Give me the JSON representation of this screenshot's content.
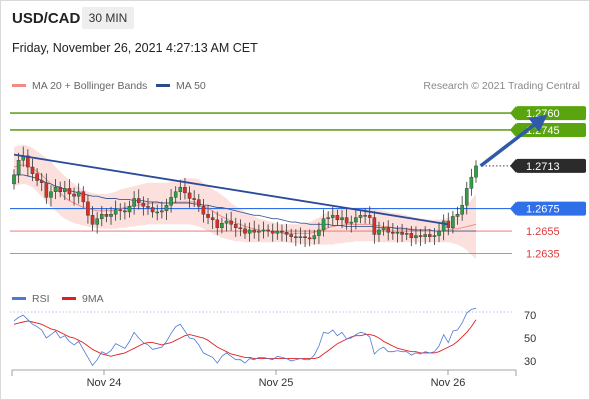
{
  "header": {
    "symbol": "USD/CAD",
    "timeframe": "30 MIN",
    "datetime": "Friday, November 26, 2021 4:27:13 AM CET"
  },
  "legend": {
    "price": [
      {
        "label": "MA 20 + Bollinger Bands",
        "color": "#f28b82"
      },
      {
        "label": "MA 50",
        "color": "#2b4a8b"
      }
    ],
    "credit": "Research © 2021 Trading Central",
    "rsi": [
      {
        "label": "RSI",
        "color": "#4f79d6"
      },
      {
        "label": "9MA",
        "color": "#e02020"
      }
    ]
  },
  "chart_data": [
    {
      "type": "candlestick",
      "symbol": "USD/CAD",
      "ylim": [
        1.2607,
        1.2777
      ],
      "x_labels": [
        "Nov 24",
        "Nov 25",
        "Nov 26"
      ],
      "series_close_estimate": [
        1.2705,
        1.2718,
        1.2722,
        1.2712,
        1.2706,
        1.27,
        1.2698,
        1.2685,
        1.269,
        1.2694,
        1.269,
        1.2693,
        1.2688,
        1.2686,
        1.269,
        1.2681,
        1.2669,
        1.2661,
        1.2666,
        1.267,
        1.2668,
        1.267,
        1.2674,
        1.2673,
        1.2672,
        1.2677,
        1.2684,
        1.268,
        1.2677,
        1.2676,
        1.2672,
        1.2672,
        1.2673,
        1.2678,
        1.2685,
        1.269,
        1.2694,
        1.2689,
        1.2684,
        1.2683,
        1.2677,
        1.267,
        1.2667,
        1.2665,
        1.2658,
        1.2662,
        1.2664,
        1.2661,
        1.2658,
        1.2657,
        1.2653,
        1.2656,
        1.2654,
        1.2655,
        1.2656,
        1.2655,
        1.2653,
        1.2655,
        1.2654,
        1.2652,
        1.265,
        1.2649,
        1.265,
        1.2649,
        1.2648,
        1.2651,
        1.2656,
        1.2666,
        1.2667,
        1.2669,
        1.2665,
        1.2667,
        1.2662,
        1.2663,
        1.2667,
        1.2669,
        1.2669,
        1.2667,
        1.2652,
        1.2656,
        1.2658,
        1.2654,
        1.2653,
        1.2654,
        1.2652,
        1.2653,
        1.2649,
        1.2651,
        1.265,
        1.2652,
        1.265,
        1.2651,
        1.2655,
        1.2664,
        1.2658,
        1.2668,
        1.267,
        1.2678,
        1.2693,
        1.2703,
        1.2713
      ],
      "bollinger_upper_estimate": [
        1.273,
        1.2731,
        1.2732,
        1.2731,
        1.2729,
        1.2726,
        1.2723,
        1.272,
        1.2717,
        1.2712,
        1.2708,
        1.2704,
        1.27,
        1.2697,
        1.2694,
        1.2692,
        1.269,
        1.2689,
        1.2688,
        1.2688,
        1.2688,
        1.2689,
        1.269,
        1.2692,
        1.2693,
        1.2694,
        1.2695,
        1.2696,
        1.2697,
        1.2698,
        1.2698,
        1.2698,
        1.2698,
        1.2698,
        1.2699,
        1.27,
        1.2701,
        1.2702,
        1.2702,
        1.2702,
        1.2701,
        1.2698,
        1.2695,
        1.2692,
        1.269,
        1.2687,
        1.2684,
        1.268,
        1.2677,
        1.2675,
        1.2672,
        1.267,
        1.2668,
        1.2666,
        1.2665,
        1.2664,
        1.2663,
        1.2662,
        1.2661,
        1.2661,
        1.2661,
        1.2661,
        1.2661,
        1.2662,
        1.2663,
        1.2665,
        1.2667,
        1.267,
        1.2672,
        1.2674,
        1.2675,
        1.2676,
        1.2676,
        1.2676,
        1.2676,
        1.2676,
        1.2676,
        1.2676,
        1.2675,
        1.2674,
        1.2673,
        1.2672,
        1.2671,
        1.2671,
        1.267,
        1.2669,
        1.2668,
        1.2667,
        1.2666,
        1.2666,
        1.2665,
        1.2665,
        1.2665,
        1.2666,
        1.2667,
        1.2669,
        1.2671,
        1.2674,
        1.2678,
        1.2683,
        1.2688
      ],
      "bollinger_lower_estimate": [
        1.2695,
        1.2696,
        1.2697,
        1.2696,
        1.2694,
        1.269,
        1.2686,
        1.2681,
        1.2677,
        1.2673,
        1.2669,
        1.2666,
        1.2664,
        1.2662,
        1.2661,
        1.266,
        1.2659,
        1.2658,
        1.2658,
        1.2657,
        1.2657,
        1.2657,
        1.2657,
        1.2658,
        1.2658,
        1.2659,
        1.2659,
        1.266,
        1.266,
        1.2661,
        1.2661,
        1.2661,
        1.2661,
        1.2661,
        1.2661,
        1.2661,
        1.2661,
        1.2661,
        1.2661,
        1.266,
        1.2659,
        1.2657,
        1.2655,
        1.2653,
        1.2651,
        1.2649,
        1.2648,
        1.2647,
        1.2646,
        1.2646,
        1.2645,
        1.2645,
        1.2645,
        1.2645,
        1.2645,
        1.2645,
        1.2645,
        1.2645,
        1.2645,
        1.2645,
        1.2644,
        1.2644,
        1.2644,
        1.2643,
        1.2643,
        1.2643,
        1.2643,
        1.2643,
        1.2643,
        1.2643,
        1.2644,
        1.2644,
        1.2645,
        1.2645,
        1.2646,
        1.2646,
        1.2646,
        1.2646,
        1.2646,
        1.2645,
        1.2645,
        1.2645,
        1.2645,
        1.2645,
        1.2645,
        1.2645,
        1.2645,
        1.2645,
        1.2645,
        1.2645,
        1.2645,
        1.2645,
        1.2645,
        1.2645,
        1.2645,
        1.2644,
        1.2643,
        1.2641,
        1.2638,
        1.2634,
        1.263
      ],
      "ma20_estimate": [
        1.2712,
        1.2713,
        1.2714,
        1.2713,
        1.2711,
        1.2708,
        1.2705,
        1.2701,
        1.2697,
        1.2693,
        1.2689,
        1.2685,
        1.2682,
        1.268,
        1.2678,
        1.2676,
        1.2675,
        1.2674,
        1.2673,
        1.2673,
        1.2673,
        1.2673,
        1.2674,
        1.2675,
        1.2676,
        1.2677,
        1.2678,
        1.2678,
        1.2679,
        1.2679,
        1.268,
        1.268,
        1.268,
        1.268,
        1.268,
        1.2681,
        1.2681,
        1.2681,
        1.2681,
        1.2681,
        1.268,
        1.2678,
        1.2675,
        1.2673,
        1.267,
        1.2668,
        1.2666,
        1.2664,
        1.2662,
        1.2661,
        1.2659,
        1.2658,
        1.2657,
        1.2656,
        1.2655,
        1.2655,
        1.2654,
        1.2654,
        1.2653,
        1.2653,
        1.2653,
        1.2653,
        1.2653,
        1.2653,
        1.2653,
        1.2654,
        1.2655,
        1.2656,
        1.2658,
        1.2659,
        1.266,
        1.266,
        1.2661,
        1.2661,
        1.2661,
        1.2661,
        1.2661,
        1.2661,
        1.266,
        1.266,
        1.2659,
        1.2659,
        1.2658,
        1.2658,
        1.2658,
        1.2657,
        1.2657,
        1.2656,
        1.2656,
        1.2655,
        1.2655,
        1.2655,
        1.2655,
        1.2655,
        1.2656,
        1.2657,
        1.2657,
        1.2658,
        1.2659,
        1.266,
        1.2661
      ],
      "ma50_estimate": [
        1.2705,
        1.2705,
        1.2705,
        1.2704,
        1.2703,
        1.2702,
        1.27,
        1.2698,
        1.2697,
        1.2695,
        1.2694,
        1.2692,
        1.2691,
        1.269,
        1.2689,
        1.2688,
        1.2687,
        1.2686,
        1.2686,
        1.2685,
        1.2684,
        1.2684,
        1.2684,
        1.2683,
        1.2683,
        1.2683,
        1.2682,
        1.2682,
        1.2682,
        1.2681,
        1.2681,
        1.2681,
        1.268,
        1.268,
        1.268,
        1.268,
        1.268,
        1.268,
        1.268,
        1.2679,
        1.2679,
        1.2678,
        1.2678,
        1.2677,
        1.2676,
        1.2676,
        1.2675,
        1.2674,
        1.2673,
        1.2672,
        1.2671,
        1.267,
        1.2669,
        1.2669,
        1.2668,
        1.2667,
        1.2666,
        1.2666,
        1.2665,
        1.2664,
        1.2663,
        1.2663,
        1.2662,
        1.2662,
        1.2661,
        1.2661,
        1.2661,
        1.2661,
        1.2661,
        1.266,
        1.266,
        1.266,
        1.2659,
        1.2659,
        1.2659,
        1.2659,
        1.2659,
        1.2659,
        1.2659,
        1.2658,
        1.2658,
        1.2658,
        1.2658,
        1.2657,
        1.2657,
        1.2657,
        1.2656,
        1.2656,
        1.2656,
        1.2656,
        1.2656,
        1.2655,
        1.2655,
        1.2655,
        1.2655,
        1.2655,
        1.2655,
        1.2655,
        1.2655,
        1.2655,
        1.2655
      ],
      "levels": [
        {
          "value": 1.276,
          "label": "1.2760",
          "style": "resistance"
        },
        {
          "value": 1.2745,
          "label": "1.2745",
          "style": "resistance"
        },
        {
          "value": 1.2713,
          "label": "1.2713",
          "style": "last"
        },
        {
          "value": 1.2675,
          "label": "1.2675",
          "style": "pivot"
        },
        {
          "value": 1.2655,
          "label": "1.2655",
          "style": "support"
        },
        {
          "value": 1.2635,
          "label": "1.2635",
          "style": "support"
        }
      ],
      "trendline": {
        "from": {
          "index": 0,
          "value": 1.2723
        },
        "to": {
          "index": 94,
          "value": 1.2661
        }
      },
      "forecast_arrow": {
        "from": {
          "index": 101,
          "value": 1.2713
        },
        "to": {
          "index": 114,
          "value": 1.2754
        }
      }
    },
    {
      "type": "line",
      "name": "RSI panel",
      "ylim": [
        22,
        78
      ],
      "y_ticks": [
        30,
        50,
        70
      ],
      "series": [
        {
          "name": "RSI",
          "values": [
            65,
            68,
            70,
            66,
            62,
            60,
            57,
            50,
            53,
            56,
            50,
            52,
            47,
            44,
            47,
            40,
            33,
            26,
            31,
            38,
            36,
            39,
            45,
            43,
            41,
            47,
            55,
            50,
            46,
            44,
            40,
            41,
            42,
            47,
            54,
            60,
            62,
            56,
            50,
            49,
            44,
            37,
            35,
            33,
            28,
            34,
            37,
            34,
            31,
            31,
            28,
            32,
            31,
            33,
            33,
            32,
            31,
            34,
            33,
            32,
            30,
            31,
            32,
            31,
            31,
            35,
            43,
            55,
            54,
            57,
            52,
            55,
            49,
            50,
            53,
            55,
            54,
            51,
            36,
            40,
            42,
            38,
            38,
            39,
            38,
            38,
            35,
            37,
            36,
            38,
            37,
            38,
            43,
            53,
            46,
            56,
            57,
            63,
            72,
            75,
            76
          ]
        },
        {
          "name": "9MA",
          "values": [
            62,
            63,
            64,
            65,
            64,
            63,
            62,
            60,
            58,
            57,
            55,
            53,
            51,
            50,
            48,
            46,
            43,
            40,
            38,
            36,
            35,
            34,
            35,
            36,
            37,
            39,
            41,
            43,
            45,
            46,
            46,
            45,
            44,
            45,
            46,
            48,
            50,
            52,
            53,
            52,
            51,
            50,
            48,
            45,
            42,
            40,
            38,
            36,
            35,
            34,
            33,
            33,
            32,
            32,
            32,
            32,
            32,
            32,
            32,
            32,
            32,
            32,
            32,
            32,
            32,
            32,
            33,
            36,
            39,
            42,
            45,
            47,
            49,
            51,
            52,
            52,
            53,
            53,
            52,
            50,
            47,
            45,
            43,
            41,
            40,
            39,
            38,
            38,
            37,
            37,
            37,
            37,
            38,
            40,
            42,
            44,
            47,
            51,
            55,
            60,
            66
          ]
        }
      ]
    }
  ]
}
